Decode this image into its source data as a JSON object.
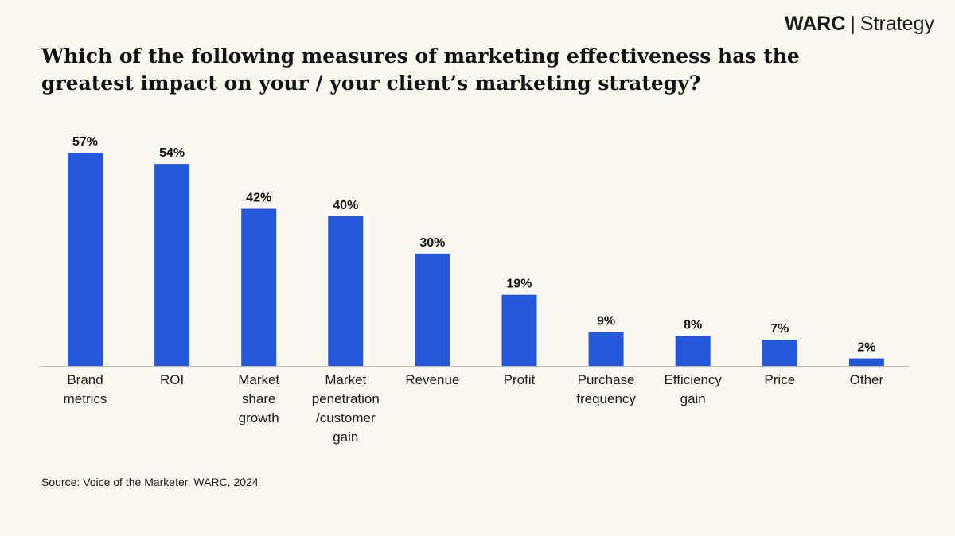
{
  "header": {
    "brand": "WARC",
    "separator": "|",
    "section": "Strategy"
  },
  "colors": {
    "background": "#FBF8F0",
    "bar": "#2359D9",
    "axis": "#BDBDBD",
    "text": "#1A1A1A"
  },
  "chart_data": {
    "type": "bar",
    "title": "Which of the following measures of marketing effectiveness has the greatest impact on your / your client’s marketing strategy?",
    "categories": [
      [
        "Brand",
        "metrics"
      ],
      [
        "ROI"
      ],
      [
        "Market",
        "share",
        "growth"
      ],
      [
        "Market",
        "penetration",
        "/customer",
        "gain"
      ],
      [
        "Revenue"
      ],
      [
        "Profit"
      ],
      [
        "Purchase",
        "frequency"
      ],
      [
        "Efficiency",
        "gain"
      ],
      [
        "Price"
      ],
      [
        "Other"
      ]
    ],
    "values": [
      57,
      54,
      42,
      40,
      30,
      19,
      9,
      8,
      7,
      2
    ],
    "value_labels": [
      "57%",
      "54%",
      "42%",
      "40%",
      "30%",
      "19%",
      "9%",
      "8%",
      "7%",
      "2%"
    ],
    "unit": "%",
    "xlabel": "",
    "ylabel": "",
    "ylim": [
      0,
      57
    ],
    "grid": false,
    "legend": "none"
  },
  "footer": {
    "source": "Source: Voice of the Marketer, WARC, 2024"
  }
}
